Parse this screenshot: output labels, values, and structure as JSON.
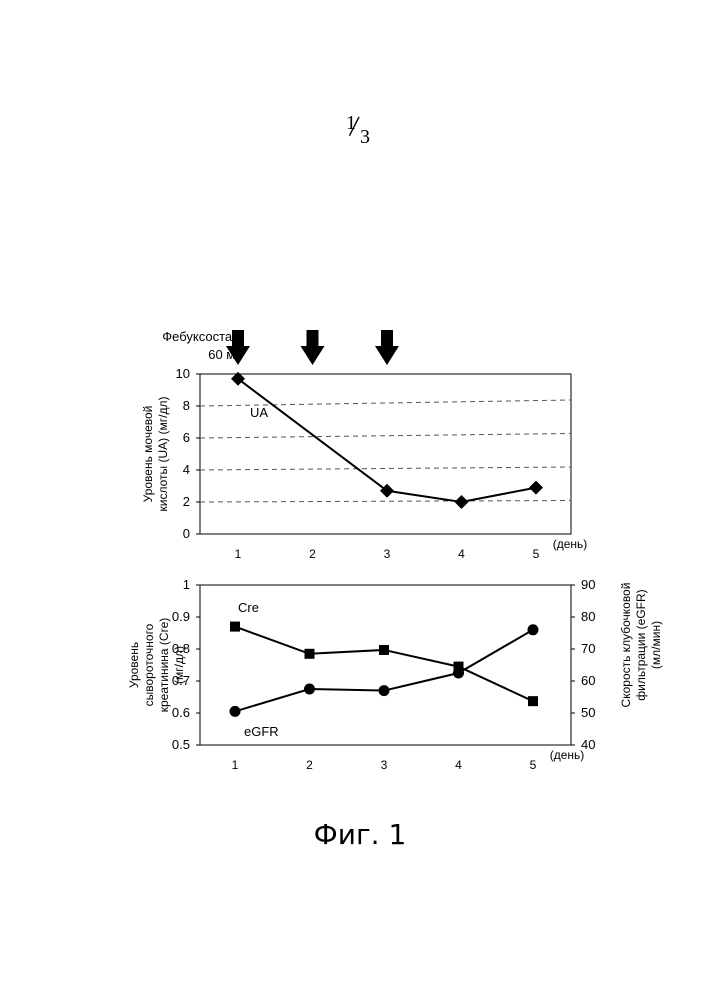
{
  "page_number": {
    "numerator": "1",
    "denominator": "3"
  },
  "drug_label": {
    "line1": "Фебуксостат,",
    "line2": "60 мг"
  },
  "figure_caption": "Фиг. 1",
  "chart_data": [
    {
      "type": "line",
      "x": [
        1,
        2,
        3,
        4,
        5
      ],
      "x_tick_labels": [
        "1",
        "2",
        "3",
        "4",
        "5"
      ],
      "x_unit": "(день)",
      "ylabel": "Уровень мочевой кислоты (UA) (мг/дл)",
      "ylim": [
        0,
        10
      ],
      "y_ticks": [
        0,
        2,
        4,
        6,
        8,
        10
      ],
      "grid": "dashed horizontal",
      "dosing_days": [
        1,
        2,
        3
      ],
      "series": [
        {
          "name": "UA",
          "marker": "diamond",
          "values": [
            9.7,
            null,
            2.7,
            2.0,
            2.9
          ]
        }
      ]
    },
    {
      "type": "line",
      "x": [
        1,
        2,
        3,
        4,
        5
      ],
      "x_tick_labels": [
        "1",
        "2",
        "3",
        "4",
        "5"
      ],
      "x_unit": "(день)",
      "ylabel": "Уровень сывороточного креатинина (Cre) (мг/дл)",
      "ylabel_right": "Скорость клубочковой фильтрации (eGFR) (мл/мин)",
      "ylim": [
        0.5,
        1
      ],
      "ylim_right": [
        40,
        90
      ],
      "y_ticks": [
        "0.5",
        "0.6",
        "0.7",
        "0.8",
        "0.9",
        "1"
      ],
      "y_ticks_right": [
        "40",
        "50",
        "60",
        "70",
        "80",
        "90"
      ],
      "series": [
        {
          "name": "Cre",
          "marker": "square",
          "axis": "left",
          "values": [
            0.87,
            0.785,
            0.797,
            0.745,
            0.637
          ]
        },
        {
          "name": "eGFR",
          "marker": "circle",
          "axis": "right",
          "values": [
            50.5,
            57.5,
            57.0,
            62.5,
            76.0
          ]
        }
      ]
    }
  ]
}
